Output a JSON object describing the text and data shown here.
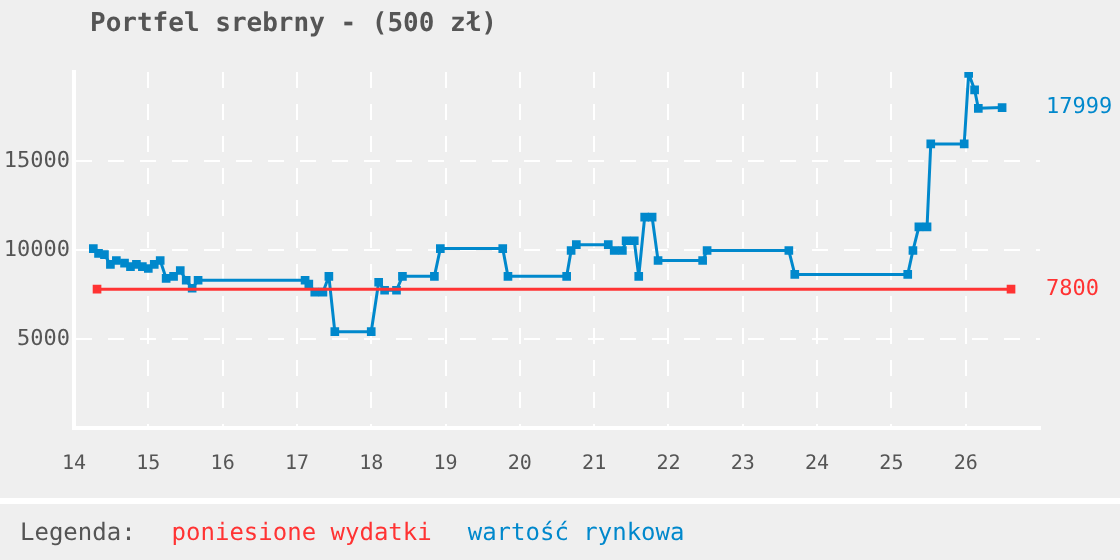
{
  "chart_data": {
    "type": "line",
    "title": "Portfel srebrny - (500 zł)",
    "legend_title": "Legenda:",
    "legend": "bottom",
    "grid": true,
    "marker": "square",
    "line_style": "solid",
    "xlim": [
      14,
      27
    ],
    "xticks": [
      14,
      15,
      16,
      17,
      18,
      19,
      20,
      21,
      22,
      23,
      24,
      25,
      26
    ],
    "ylim": [
      0,
      20000
    ],
    "yticks": [
      5000,
      10000,
      15000
    ],
    "series": [
      {
        "name": "poniesione wydatki",
        "color": "#ff3333",
        "x": [
          14.31,
          26.61
        ],
        "values": [
          7800,
          7800
        ],
        "value_labels": [
          null,
          "7800"
        ]
      },
      {
        "name": "wartość rynkowa",
        "color": "#0088cc",
        "x": [
          14.26,
          14.33,
          14.41,
          14.49,
          14.57,
          14.68,
          14.76,
          14.84,
          14.92,
          15.0,
          15.08,
          15.16,
          15.24,
          15.34,
          15.43,
          15.51,
          15.59,
          15.67,
          17.11,
          17.16,
          17.24,
          17.35,
          17.43,
          17.51,
          18.0,
          18.1,
          18.18,
          18.34,
          18.42,
          18.85,
          18.93,
          19.77,
          19.84,
          20.63,
          20.69,
          20.76,
          21.19,
          21.27,
          21.38,
          21.43,
          21.54,
          21.6,
          21.68,
          21.78,
          21.86,
          22.46,
          22.52,
          23.62,
          23.7,
          25.22,
          25.29,
          25.37,
          25.48,
          25.53,
          25.98,
          26.04,
          26.12,
          26.17,
          26.49
        ],
        "values": [
          10080,
          9810,
          9740,
          9190,
          9410,
          9260,
          9070,
          9190,
          9070,
          8960,
          9190,
          9410,
          8410,
          8520,
          8850,
          8300,
          7850,
          8300,
          8300,
          8080,
          7630,
          7630,
          8520,
          5410,
          5410,
          8190,
          7740,
          7740,
          8520,
          8520,
          10080,
          10080,
          8520,
          8520,
          9970,
          10300,
          10300,
          9970,
          9970,
          10520,
          10520,
          8520,
          11850,
          11850,
          9410,
          9410,
          9970,
          9970,
          8630,
          8630,
          9970,
          11300,
          11300,
          15960,
          15960,
          19920,
          19000,
          17960,
          17999
        ],
        "value_labels": [
          null,
          null,
          null,
          null,
          null,
          null,
          null,
          null,
          null,
          null,
          null,
          null,
          null,
          null,
          null,
          null,
          null,
          null,
          null,
          null,
          null,
          null,
          null,
          null,
          null,
          null,
          null,
          null,
          null,
          null,
          null,
          null,
          null,
          null,
          null,
          null,
          null,
          null,
          null,
          null,
          null,
          null,
          null,
          null,
          null,
          null,
          null,
          null,
          null,
          null,
          null,
          null,
          null,
          null,
          null,
          null,
          null,
          null,
          "17999"
        ]
      }
    ]
  }
}
